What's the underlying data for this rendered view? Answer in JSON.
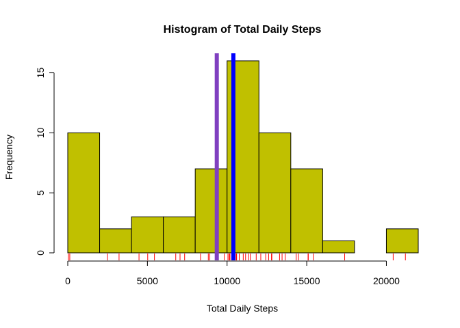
{
  "chart_data": {
    "type": "bar",
    "title": "Histogram of Total Daily Steps",
    "xlabel": "Total Daily Steps",
    "ylabel": "Frequency",
    "bin_edges": [
      0,
      2000,
      4000,
      6000,
      8000,
      10000,
      12000,
      14000,
      16000,
      18000,
      20000,
      22000
    ],
    "values": [
      10,
      2,
      3,
      3,
      7,
      16,
      10,
      7,
      1,
      0,
      2
    ],
    "xlim": [
      0,
      22000
    ],
    "ylim": [
      0,
      16
    ],
    "x_ticks": [
      0,
      5000,
      10000,
      15000,
      20000
    ],
    "x_tick_labels": [
      "0",
      "5000",
      "10000",
      "15000",
      "20000"
    ],
    "y_ticks": [
      0,
      5,
      10,
      15
    ],
    "y_tick_labels": [
      "0",
      "5",
      "10",
      "15"
    ],
    "bar_color": "#c0c000",
    "vlines": [
      {
        "x": 9354,
        "color": "#8040c0"
      },
      {
        "x": 10395,
        "color": "#0000ff"
      }
    ],
    "rug": [
      41,
      126,
      2492,
      3219,
      4472,
      5018,
      5441,
      6778,
      7047,
      7336,
      8334,
      8821,
      8918,
      9819,
      10056,
      10139,
      10183,
      10304,
      10395,
      10439,
      10571,
      10600,
      10765,
      11015,
      11162,
      11352,
      11458,
      11829,
      12116,
      12426,
      12608,
      12787,
      12811,
      13294,
      13452,
      13646,
      14339,
      14478,
      15084,
      15098,
      15414,
      17382,
      20427,
      21194
    ],
    "rug_color": "#ff0000",
    "grid": false,
    "legend": "none"
  }
}
